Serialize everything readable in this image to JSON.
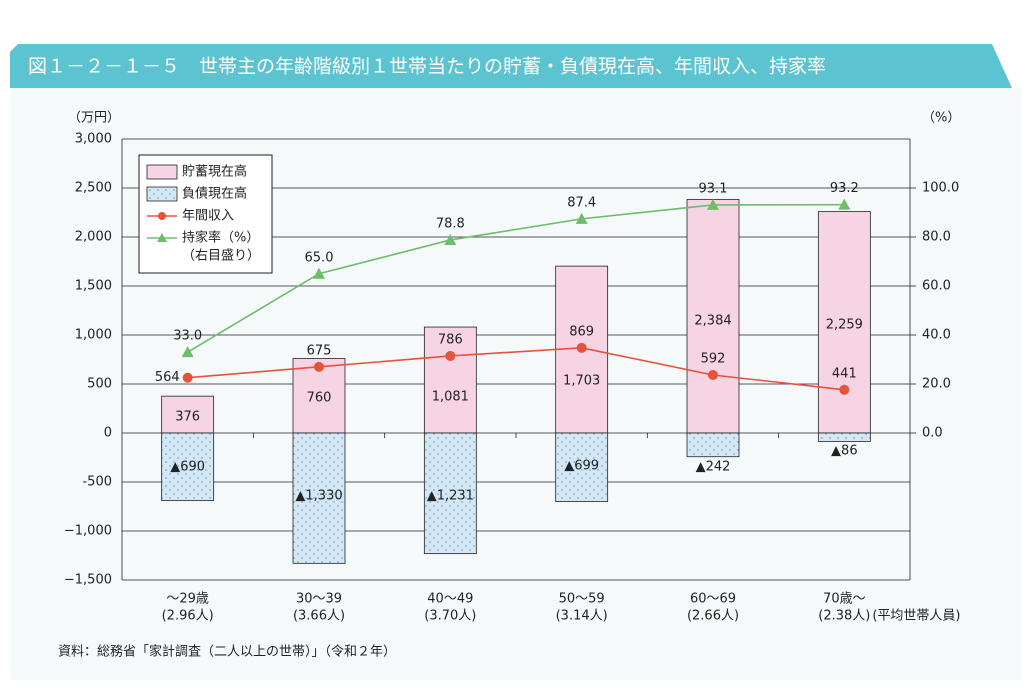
{
  "chart_data": {
    "type": "bar",
    "title": "図１－２－１－５　世帯主の年齢階級別１世帯当たりの貯蓄・負債現在高、年間収入、持家率",
    "y_unit": "（万円）",
    "y2_unit": "（%）",
    "categories": [
      "～29歳",
      "30～39",
      "40～49",
      "50～59",
      "60～69",
      "70歳～"
    ],
    "category_sublabels": [
      "(2.96人)",
      "(3.66人)",
      "(3.70人)",
      "(3.14人)",
      "(2.66人)",
      "(2.38人)"
    ],
    "category_note": "(平均世帯人員)",
    "series": [
      {
        "name": "貯蓄現在高",
        "type": "bar",
        "color": "#f7d4e4",
        "values": [
          376,
          760,
          1081,
          1703,
          2384,
          2259
        ],
        "value_labels": [
          "376",
          "760",
          "1,081",
          "1,703",
          "2,384",
          "2,259"
        ]
      },
      {
        "name": "負債現在高",
        "type": "bar",
        "color": "#d3e7f4",
        "values": [
          -690,
          -1330,
          -1231,
          -699,
          -242,
          -86
        ],
        "value_labels": [
          "▲690",
          "▲1,330",
          "▲1,231",
          "▲699",
          "▲242",
          "▲86"
        ]
      },
      {
        "name": "年間収入",
        "type": "line",
        "color": "#e5533b",
        "values": [
          564,
          675,
          786,
          869,
          592,
          441
        ]
      },
      {
        "name": "持家率（%）",
        "type": "line",
        "axis": "y2",
        "color": "#6dbd6a",
        "values": [
          33.0,
          65.0,
          78.8,
          87.4,
          93.1,
          93.2
        ],
        "value_labels": [
          "33.0",
          "65.0",
          "78.8",
          "87.4",
          "93.1",
          "93.2"
        ]
      }
    ],
    "legend_note": "（右目盛り）",
    "ylim": [
      -1500,
      3000
    ],
    "yticks": [
      {
        "value": -1500,
        "label": "−1,500"
      },
      {
        "value": -1000,
        "label": "−1,000"
      },
      -500,
      0,
      500,
      {
        "value": 1000,
        "label": "1,000"
      },
      {
        "value": 1500,
        "label": "1,500"
      },
      {
        "value": 2000,
        "label": "2,000"
      },
      {
        "value": 2500,
        "label": "2,500"
      },
      {
        "value": 3000,
        "label": "3,000"
      }
    ],
    "y2lim": [
      -60,
      120
    ],
    "y2ticks": [
      {
        "value": 0,
        "label": "0.0"
      },
      {
        "value": 20,
        "label": "20.0"
      },
      {
        "value": 40,
        "label": "40.0"
      },
      {
        "value": 60,
        "label": "60.0"
      },
      {
        "value": 80,
        "label": "80.0"
      },
      {
        "value": 100,
        "label": "100.0"
      }
    ],
    "grid": true,
    "source": "資料：総務省「家計調査（二人以上の世帯）」（令和２年）"
  }
}
